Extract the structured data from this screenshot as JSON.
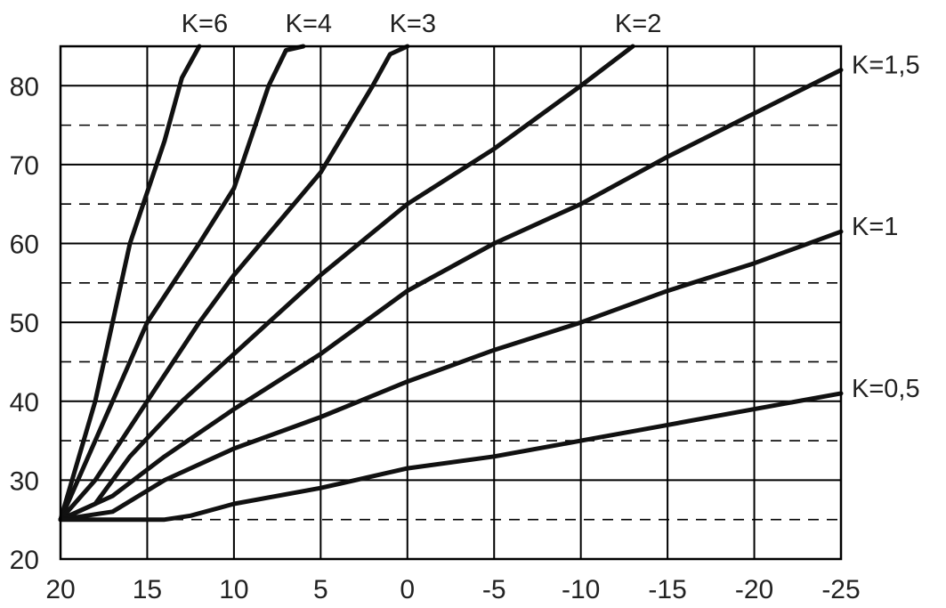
{
  "chart_data": {
    "type": "line",
    "title": "",
    "xlabel": "",
    "ylabel": "",
    "xlim": [
      20,
      -25
    ],
    "ylim": [
      20,
      85
    ],
    "x_ticks": [
      20,
      15,
      10,
      5,
      0,
      -5,
      -10,
      -15,
      -20,
      -25
    ],
    "x_tick_labels": [
      "20",
      "15",
      "10",
      "5",
      "0",
      "-5",
      "-10",
      "-15",
      "-20",
      "-25"
    ],
    "y_ticks": [
      20,
      30,
      40,
      50,
      60,
      70,
      80
    ],
    "y_tick_labels": [
      "20",
      "30",
      "40",
      "50",
      "60",
      "70",
      "80"
    ],
    "y_minor_dashed": [
      25,
      35,
      45,
      55,
      65,
      75
    ],
    "grid": true,
    "series": [
      {
        "name": "K=6",
        "points": [
          [
            20,
            25
          ],
          [
            18,
            40
          ],
          [
            16,
            60
          ],
          [
            14,
            73
          ],
          [
            13,
            81
          ],
          [
            12,
            85
          ]
        ]
      },
      {
        "name": "K=4",
        "points": [
          [
            20,
            25
          ],
          [
            17,
            40
          ],
          [
            15,
            50
          ],
          [
            12,
            60
          ],
          [
            10,
            67
          ],
          [
            8,
            80
          ],
          [
            7,
            84.5
          ],
          [
            6,
            85
          ]
        ]
      },
      {
        "name": "K=3",
        "points": [
          [
            20,
            25
          ],
          [
            18,
            30
          ],
          [
            15,
            40
          ],
          [
            12,
            50
          ],
          [
            10,
            56
          ],
          [
            5,
            69
          ],
          [
            2,
            80
          ],
          [
            1,
            84
          ],
          [
            0,
            85
          ]
        ]
      },
      {
        "name": "K=2",
        "points": [
          [
            20,
            25
          ],
          [
            18,
            27
          ],
          [
            16,
            33
          ],
          [
            13,
            40
          ],
          [
            10,
            46
          ],
          [
            5,
            56
          ],
          [
            0,
            65
          ],
          [
            -5,
            72
          ],
          [
            -10,
            80
          ],
          [
            -13,
            85
          ]
        ]
      },
      {
        "name": "K=1,5",
        "points": [
          [
            20,
            25
          ],
          [
            17,
            28
          ],
          [
            14,
            33
          ],
          [
            10,
            39
          ],
          [
            5,
            46
          ],
          [
            0,
            54
          ],
          [
            -5,
            60
          ],
          [
            -10,
            65
          ],
          [
            -15,
            71
          ],
          [
            -20,
            76.5
          ],
          [
            -25,
            82
          ]
        ]
      },
      {
        "name": "K=1",
        "points": [
          [
            20,
            25
          ],
          [
            17,
            26
          ],
          [
            14,
            30
          ],
          [
            10,
            34
          ],
          [
            5,
            38
          ],
          [
            0,
            42.5
          ],
          [
            -5,
            46.5
          ],
          [
            -10,
            50
          ],
          [
            -15,
            54
          ],
          [
            -20,
            57.5
          ],
          [
            -25,
            61.5
          ]
        ]
      },
      {
        "name": "K=0,5",
        "points": [
          [
            20,
            25
          ],
          [
            17,
            25
          ],
          [
            14,
            25
          ],
          [
            12.5,
            25.5
          ],
          [
            10,
            27
          ],
          [
            5,
            29
          ],
          [
            0,
            31.5
          ],
          [
            -5,
            33
          ],
          [
            -10,
            35
          ],
          [
            -15,
            37
          ],
          [
            -20,
            39
          ],
          [
            -25,
            41
          ]
        ]
      }
    ]
  }
}
